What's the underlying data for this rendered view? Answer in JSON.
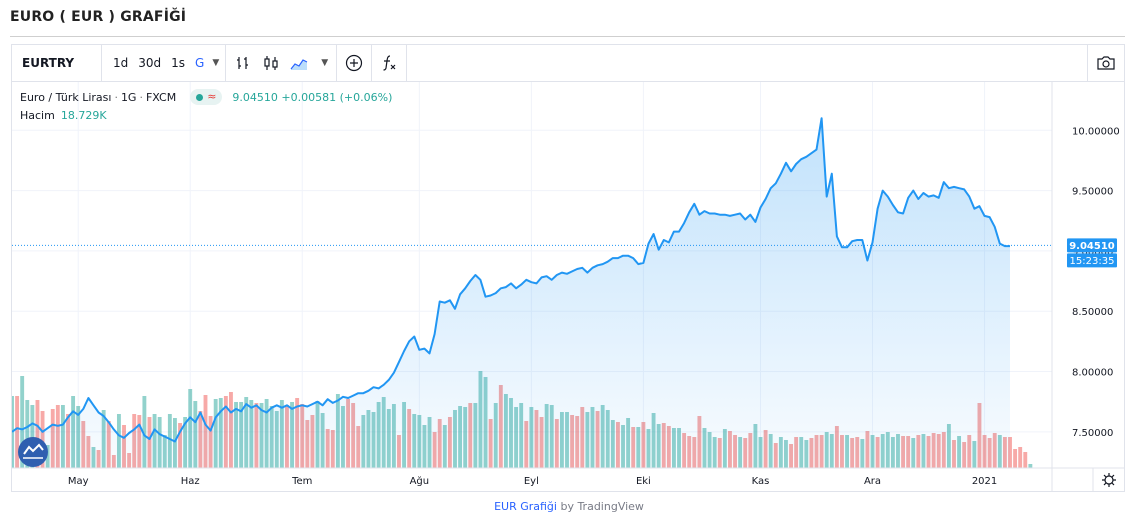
{
  "page": {
    "title": "EURO ( EUR ) GRAFİĞİ"
  },
  "toolbar": {
    "symbol": "EURTRY",
    "intervals": [
      {
        "label": "1d",
        "active": false
      },
      {
        "label": "30d",
        "active": false
      },
      {
        "label": "1s",
        "active": false
      },
      {
        "label": "G",
        "active": true
      }
    ],
    "icons": [
      "caret-down-icon",
      "indicators-icon",
      "candles-icon",
      "area-style-icon",
      "compare-icon",
      "formula-icon",
      "camera-icon"
    ]
  },
  "legend": {
    "name": "Euro / Türk Lirası",
    "interval": "1G",
    "source": "FXCM",
    "last": "9.04510",
    "change": "+0.00581",
    "change_pct": "(+0.06%)",
    "volume_label": "Hacim",
    "volume_value": "18.729K"
  },
  "price_label": {
    "value": "9.04510",
    "countdown": "15:23:35"
  },
  "footer": {
    "link": "EUR Grafiği",
    "by": "by TradingView"
  },
  "colors": {
    "line": "#2196f3",
    "up": "#26a69a",
    "down": "#ef5350",
    "accent": "#2962ff"
  },
  "chart_data": {
    "type": "area",
    "y_ticks": [
      "7.50000",
      "8.00000",
      "8.50000",
      "9.00000",
      "9.50000",
      "10.00000"
    ],
    "y_range": [
      7.2,
      10.4
    ],
    "x_ticks": [
      {
        "label": "May",
        "i": 13
      },
      {
        "label": "Haz",
        "i": 35
      },
      {
        "label": "Tem",
        "i": 57
      },
      {
        "label": "Ağu",
        "i": 80
      },
      {
        "label": "Eyl",
        "i": 102
      },
      {
        "label": "Eki",
        "i": 124
      },
      {
        "label": "Kas",
        "i": 147
      },
      {
        "label": "Ara",
        "i": 169
      },
      {
        "label": "2021",
        "i": 191
      }
    ],
    "price": [
      7.5,
      7.53,
      7.52,
      7.54,
      7.57,
      7.55,
      7.5,
      7.53,
      7.56,
      7.55,
      7.56,
      7.62,
      7.67,
      7.64,
      7.69,
      7.78,
      7.72,
      7.66,
      7.63,
      7.58,
      7.52,
      7.47,
      7.45,
      7.49,
      7.52,
      7.56,
      7.47,
      7.44,
      7.52,
      7.48,
      7.46,
      7.44,
      7.42,
      7.5,
      7.57,
      7.62,
      7.58,
      7.66,
      7.56,
      7.51,
      7.62,
      7.67,
      7.71,
      7.66,
      7.69,
      7.67,
      7.73,
      7.7,
      7.72,
      7.68,
      7.66,
      7.7,
      7.72,
      7.7,
      7.72,
      7.69,
      7.71,
      7.72,
      7.71,
      7.73,
      7.75,
      7.72,
      7.77,
      7.74,
      7.76,
      7.79,
      7.78,
      7.8,
      7.82,
      7.82,
      7.84,
      7.87,
      7.86,
      7.89,
      7.93,
      7.99,
      8.08,
      8.17,
      8.25,
      8.29,
      8.18,
      8.19,
      8.15,
      8.31,
      8.58,
      8.57,
      8.59,
      8.52,
      8.64,
      8.69,
      8.75,
      8.8,
      8.76,
      8.62,
      8.63,
      8.65,
      8.69,
      8.7,
      8.73,
      8.69,
      8.72,
      8.76,
      8.74,
      8.73,
      8.78,
      8.79,
      8.76,
      8.8,
      8.82,
      8.81,
      8.83,
      8.85,
      8.86,
      8.82,
      8.86,
      8.88,
      8.89,
      8.91,
      8.94,
      8.94,
      8.96,
      8.96,
      8.94,
      8.89,
      8.9,
      9.06,
      9.14,
      9.01,
      9.09,
      9.07,
      9.16,
      9.16,
      9.23,
      9.32,
      9.39,
      9.3,
      9.33,
      9.31,
      9.31,
      9.3,
      9.3,
      9.29,
      9.3,
      9.31,
      9.26,
      9.3,
      9.24,
      9.36,
      9.43,
      9.52,
      9.56,
      9.64,
      9.73,
      9.66,
      9.72,
      9.76,
      9.78,
      9.81,
      9.84,
      10.1,
      9.45,
      9.64,
      9.12,
      9.03,
      9.03,
      9.08,
      9.09,
      9.09,
      8.92,
      9.07,
      9.35,
      9.5,
      9.45,
      9.38,
      9.32,
      9.31,
      9.44,
      9.5,
      9.43,
      9.48,
      9.45,
      9.46,
      9.44,
      9.57,
      9.52,
      9.53,
      9.52,
      9.51,
      9.45,
      9.35,
      9.37,
      9.29,
      9.28,
      9.2,
      9.06,
      9.04,
      9.04
    ],
    "volume_max": 10,
    "volume": [
      {
        "v": 7.2,
        "up": true
      },
      {
        "v": 7.2,
        "up": false
      },
      {
        "v": 9.2,
        "up": true
      },
      {
        "v": 6.8,
        "up": true
      },
      {
        "v": 6.3,
        "up": true
      },
      {
        "v": 6.8,
        "up": false
      },
      {
        "v": 5.7,
        "up": false
      },
      {
        "v": 2.3,
        "up": true
      },
      {
        "v": 5.9,
        "up": false
      },
      {
        "v": 6.3,
        "up": false
      },
      {
        "v": 6.3,
        "up": true
      },
      {
        "v": 5.4,
        "up": false
      },
      {
        "v": 7.2,
        "up": true
      },
      {
        "v": 6.2,
        "up": true
      },
      {
        "v": 4.7,
        "up": false
      },
      {
        "v": 3.2,
        "up": false
      },
      {
        "v": 2.1,
        "up": true
      },
      {
        "v": 1.8,
        "up": false
      },
      {
        "v": 5.8,
        "up": true
      },
      {
        "v": 4.7,
        "up": false
      },
      {
        "v": 1.3,
        "up": false
      },
      {
        "v": 5.4,
        "up": true
      },
      {
        "v": 4.3,
        "up": false
      },
      {
        "v": 1.5,
        "up": false
      },
      {
        "v": 5.4,
        "up": false
      },
      {
        "v": 5.3,
        "up": false
      },
      {
        "v": 7.2,
        "up": true
      },
      {
        "v": 5.1,
        "up": false
      },
      {
        "v": 5.4,
        "up": true
      },
      {
        "v": 5.1,
        "up": true
      },
      {
        "v": 3.3,
        "up": true
      },
      {
        "v": 5.4,
        "up": true
      },
      {
        "v": 5,
        "up": true
      },
      {
        "v": 4.5,
        "up": false
      },
      {
        "v": 5.1,
        "up": true
      },
      {
        "v": 7.9,
        "up": true
      },
      {
        "v": 6.7,
        "up": true
      },
      {
        "v": 5.7,
        "up": false
      },
      {
        "v": 7.3,
        "up": false
      },
      {
        "v": 5.2,
        "up": false
      },
      {
        "v": 6.9,
        "up": true
      },
      {
        "v": 7,
        "up": true
      },
      {
        "v": 7.2,
        "up": false
      },
      {
        "v": 7.6,
        "up": false
      },
      {
        "v": 6.6,
        "up": true
      },
      {
        "v": 6.6,
        "up": true
      },
      {
        "v": 7.1,
        "up": true
      },
      {
        "v": 6.8,
        "up": true
      },
      {
        "v": 6.5,
        "up": false
      },
      {
        "v": 6.5,
        "up": true
      },
      {
        "v": 6.9,
        "up": true
      },
      {
        "v": 6.2,
        "up": true
      },
      {
        "v": 5.7,
        "up": true
      },
      {
        "v": 6.8,
        "up": true
      },
      {
        "v": 6.3,
        "up": false
      },
      {
        "v": 6.6,
        "up": true
      },
      {
        "v": 7,
        "up": false
      },
      {
        "v": 6.4,
        "up": false
      },
      {
        "v": 4.8,
        "up": false
      },
      {
        "v": 5.3,
        "up": false
      },
      {
        "v": 6.7,
        "up": true
      },
      {
        "v": 5.5,
        "up": true
      },
      {
        "v": 3.9,
        "up": false
      },
      {
        "v": 3.8,
        "up": false
      },
      {
        "v": 7.4,
        "up": true
      },
      {
        "v": 6.2,
        "up": true
      },
      {
        "v": 6.9,
        "up": false
      },
      {
        "v": 6.5,
        "up": false
      },
      {
        "v": 4.2,
        "up": false
      },
      {
        "v": 5.3,
        "up": true
      },
      {
        "v": 5.8,
        "up": true
      },
      {
        "v": 5.6,
        "up": true
      },
      {
        "v": 6.6,
        "up": true
      },
      {
        "v": 7.1,
        "up": true
      },
      {
        "v": 5.9,
        "up": true
      },
      {
        "v": 6.4,
        "up": true
      },
      {
        "v": 3.3,
        "up": false
      },
      {
        "v": 6.6,
        "up": true
      },
      {
        "v": 5.9,
        "up": false
      },
      {
        "v": 5.4,
        "up": true
      },
      {
        "v": 5.3,
        "up": true
      },
      {
        "v": 4.3,
        "up": true
      },
      {
        "v": 5.1,
        "up": true
      },
      {
        "v": 3.6,
        "up": false
      },
      {
        "v": 4.9,
        "up": false
      },
      {
        "v": 4.3,
        "up": true
      },
      {
        "v": 5.1,
        "up": false
      },
      {
        "v": 5.8,
        "up": true
      },
      {
        "v": 6.2,
        "up": true
      },
      {
        "v": 6.1,
        "up": true
      },
      {
        "v": 6.5,
        "up": false
      },
      {
        "v": 6.5,
        "up": true
      },
      {
        "v": 9.7,
        "up": true
      },
      {
        "v": 9.1,
        "up": true
      },
      {
        "v": 4.9,
        "up": false
      },
      {
        "v": 6.5,
        "up": true
      },
      {
        "v": 8.3,
        "up": false
      },
      {
        "v": 7.4,
        "up": true
      },
      {
        "v": 7,
        "up": true
      },
      {
        "v": 6.1,
        "up": true
      },
      {
        "v": 6.5,
        "up": true
      },
      {
        "v": 4.7,
        "up": false
      },
      {
        "v": 6.1,
        "up": true
      },
      {
        "v": 5.8,
        "up": false
      },
      {
        "v": 5.1,
        "up": false
      },
      {
        "v": 6.4,
        "up": true
      },
      {
        "v": 6.3,
        "up": true
      },
      {
        "v": 4.9,
        "up": false
      },
      {
        "v": 5.6,
        "up": true
      },
      {
        "v": 5.6,
        "up": true
      },
      {
        "v": 5.3,
        "up": false
      },
      {
        "v": 5.2,
        "up": false
      },
      {
        "v": 6.1,
        "up": false
      },
      {
        "v": 5.6,
        "up": true
      },
      {
        "v": 6.1,
        "up": true
      },
      {
        "v": 5.7,
        "up": false
      },
      {
        "v": 6.3,
        "up": true
      },
      {
        "v": 5.8,
        "up": true
      },
      {
        "v": 4.8,
        "up": true
      },
      {
        "v": 4.6,
        "up": false
      },
      {
        "v": 4.3,
        "up": true
      },
      {
        "v": 5,
        "up": true
      },
      {
        "v": 4.1,
        "up": false
      },
      {
        "v": 4.1,
        "up": true
      },
      {
        "v": 4.6,
        "up": false
      },
      {
        "v": 3.9,
        "up": true
      },
      {
        "v": 5.5,
        "up": true
      },
      {
        "v": 4.4,
        "up": true
      },
      {
        "v": 4.5,
        "up": false
      },
      {
        "v": 4.2,
        "up": false
      },
      {
        "v": 4,
        "up": true
      },
      {
        "v": 4,
        "up": true
      },
      {
        "v": 3.5,
        "up": false
      },
      {
        "v": 3.2,
        "up": false
      },
      {
        "v": 3.1,
        "up": false
      },
      {
        "v": 5.2,
        "up": false
      },
      {
        "v": 4,
        "up": true
      },
      {
        "v": 3.6,
        "up": true
      },
      {
        "v": 3.1,
        "up": true
      },
      {
        "v": 3,
        "up": false
      },
      {
        "v": 3.9,
        "up": true
      },
      {
        "v": 3.7,
        "up": false
      },
      {
        "v": 3.3,
        "up": false
      },
      {
        "v": 3.1,
        "up": true
      },
      {
        "v": 3,
        "up": false
      },
      {
        "v": 3.5,
        "up": false
      },
      {
        "v": 4.4,
        "up": true
      },
      {
        "v": 3.1,
        "up": true
      },
      {
        "v": 3.8,
        "up": false
      },
      {
        "v": 3.4,
        "up": true
      },
      {
        "v": 2.5,
        "up": false
      },
      {
        "v": 3.1,
        "up": true
      },
      {
        "v": 2.8,
        "up": true
      },
      {
        "v": 2.4,
        "up": false
      },
      {
        "v": 3.1,
        "up": false
      },
      {
        "v": 3.1,
        "up": true
      },
      {
        "v": 2.8,
        "up": true
      },
      {
        "v": 3,
        "up": false
      },
      {
        "v": 3.3,
        "up": false
      },
      {
        "v": 3.3,
        "up": false
      },
      {
        "v": 3.6,
        "up": true
      },
      {
        "v": 3.4,
        "up": true
      },
      {
        "v": 4.2,
        "up": false
      },
      {
        "v": 3.3,
        "up": false
      },
      {
        "v": 3.3,
        "up": true
      },
      {
        "v": 3,
        "up": false
      },
      {
        "v": 3.1,
        "up": false
      },
      {
        "v": 2.9,
        "up": true
      },
      {
        "v": 3.7,
        "up": false
      },
      {
        "v": 3.3,
        "up": true
      },
      {
        "v": 3.1,
        "up": false
      },
      {
        "v": 3.4,
        "up": true
      },
      {
        "v": 3.6,
        "up": true
      },
      {
        "v": 3.1,
        "up": true
      },
      {
        "v": 3.4,
        "up": true
      },
      {
        "v": 3.2,
        "up": false
      },
      {
        "v": 3.2,
        "up": false
      },
      {
        "v": 3,
        "up": true
      },
      {
        "v": 3.3,
        "up": false
      },
      {
        "v": 3.4,
        "up": true
      },
      {
        "v": 3.2,
        "up": false
      },
      {
        "v": 3.5,
        "up": false
      },
      {
        "v": 3.4,
        "up": false
      },
      {
        "v": 3.6,
        "up": false
      },
      {
        "v": 4.4,
        "up": true
      },
      {
        "v": 2.8,
        "up": false
      },
      {
        "v": 3.2,
        "up": true
      },
      {
        "v": 2.6,
        "up": false
      },
      {
        "v": 3.3,
        "up": false
      },
      {
        "v": 2.7,
        "up": true
      },
      {
        "v": 6.5,
        "up": false
      },
      {
        "v": 3.3,
        "up": false
      },
      {
        "v": 3,
        "up": false
      },
      {
        "v": 3.5,
        "up": false
      },
      {
        "v": 3.3,
        "up": true
      },
      {
        "v": 3.1,
        "up": false
      },
      {
        "v": 3.1,
        "up": false
      },
      {
        "v": 1.9,
        "up": false
      },
      {
        "v": 2.1,
        "up": false
      },
      {
        "v": 1.6,
        "up": false
      },
      {
        "v": 0.4,
        "up": true
      }
    ]
  }
}
